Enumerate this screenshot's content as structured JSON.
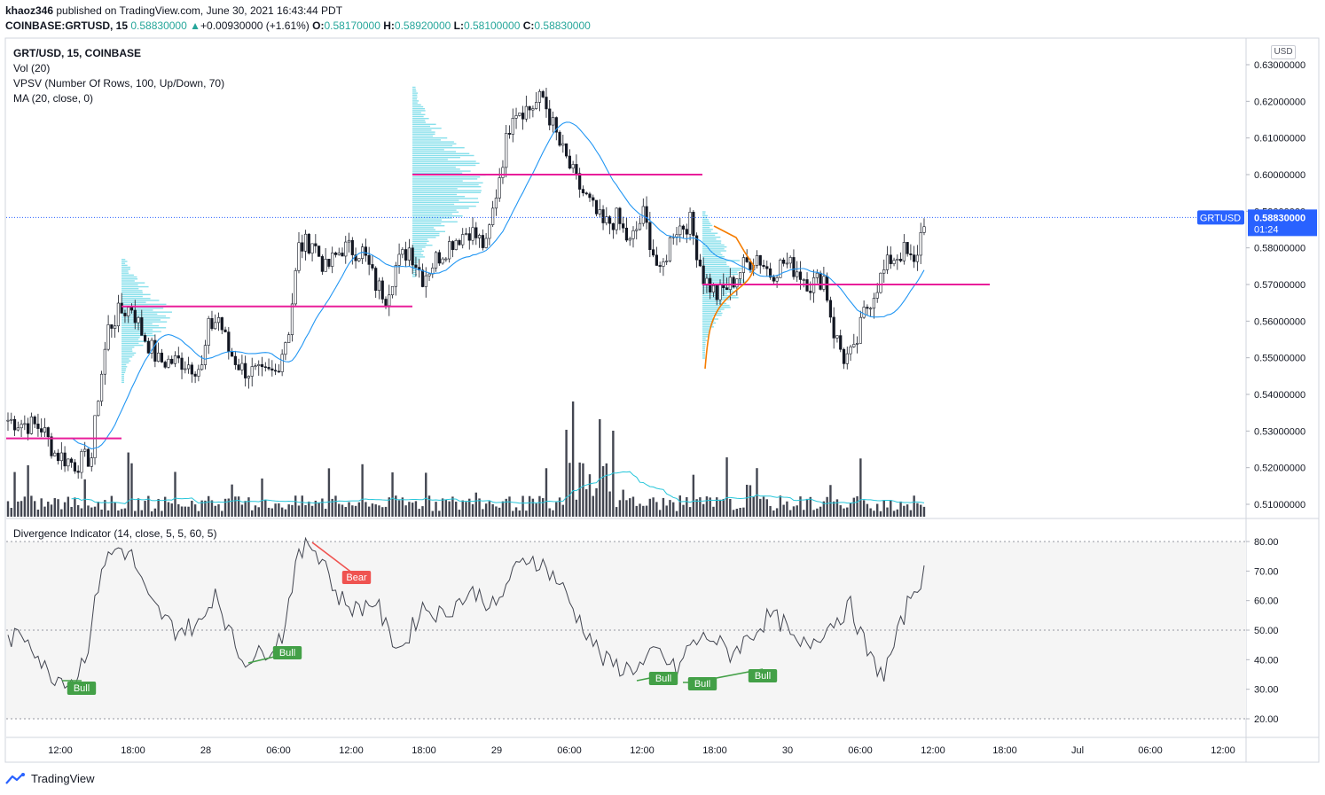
{
  "header": {
    "user": "khaoz346",
    "published": "published on TradingView.com, June 30, 2021 16:43:44 PDT",
    "symbol_line": "COINBASE:GRTUSD, 15",
    "last": "0.58830000",
    "arrow": "▲",
    "change": "+0.00930000 (+1.61%)",
    "o_label": "O:",
    "o": "0.58170000",
    "h_label": "H:",
    "h": "0.58920000",
    "l_label": "L:",
    "l": "0.58100000",
    "c_label": "C:",
    "c": "0.58830000"
  },
  "legend": {
    "symbol": "GRT/USD, 15, COINBASE",
    "vol": "Vol (20)",
    "vpsv": "VPSV (Number Of Rows, 100, Up/Down, 70)",
    "ma": "MA (20, close, 0)",
    "divergence": "Divergence Indicator (14, close, 5, 5, 60, 5)"
  },
  "price_axis": {
    "currency": "USD",
    "ticks": [
      "0.63000000",
      "0.62000000",
      "0.61000000",
      "0.60000000",
      "0.59000000",
      "0.58000000",
      "0.57000000",
      "0.56000000",
      "0.55000000",
      "0.54000000",
      "0.53000000",
      "0.52000000",
      "0.51000000"
    ],
    "last_price": "0.58830000",
    "countdown": "01:24",
    "symbol_tag": "GRTUSD"
  },
  "time_axis": {
    "ticks": [
      "12:00",
      "18:00",
      "28",
      "06:00",
      "12:00",
      "18:00",
      "29",
      "06:00",
      "12:00",
      "18:00",
      "30",
      "06:00",
      "12:00",
      "18:00",
      "Jul",
      "06:00",
      "12:00"
    ]
  },
  "osc_axis": {
    "ticks": [
      "80.00",
      "70.00",
      "60.00",
      "50.00",
      "40.00",
      "30.00",
      "20.00"
    ]
  },
  "signals": [
    {
      "type": "Bull",
      "value": "Bull"
    },
    {
      "type": "Bull",
      "value": "Bull"
    },
    {
      "type": "Bear",
      "value": "Bear"
    },
    {
      "type": "Bull",
      "value": "Bull"
    },
    {
      "type": "Bull",
      "value": "Bull"
    },
    {
      "type": "Bull",
      "value": "Bull"
    }
  ],
  "colors": {
    "up": "#26a69a",
    "down": "#131722",
    "ma": "#2196f3",
    "poc": "#e91e9a",
    "vp": "#26c6da",
    "bull": "#43a047",
    "bear": "#ef5350",
    "last_price_bg": "#2962ff"
  },
  "chart_data": {
    "type": "candlestick",
    "price_range": [
      0.505,
      0.635
    ],
    "oscillator_range": [
      15,
      85
    ],
    "poc_levels": [
      0.528,
      0.564,
      0.6,
      0.57
    ],
    "ma_period": 20,
    "series_notes": "candles, volume bars, MA line and divergence oscillator"
  },
  "footer": {
    "brand": "TradingView"
  }
}
